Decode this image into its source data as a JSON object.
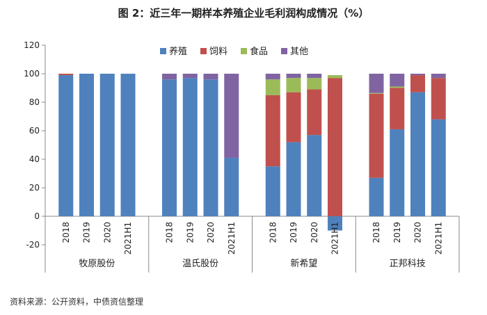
{
  "source": "资料来源：公开资料，中债资信整理",
  "chart_data": {
    "type": "bar",
    "stacked": true,
    "title": "图 2：近三年一期样本养殖企业毛利润构成情况（%）",
    "xlabel": "",
    "ylabel": "",
    "ylim": [
      -20,
      120
    ],
    "yticks": [
      -20,
      0,
      20,
      40,
      60,
      80,
      100,
      120
    ],
    "grid": false,
    "legend_position": "top-center",
    "groups": [
      {
        "name": "牧原股份",
        "categories": [
          "2018",
          "2019",
          "2020",
          "2021H1"
        ]
      },
      {
        "name": "温氏股份",
        "categories": [
          "2018",
          "2019",
          "2020",
          "2021H1"
        ]
      },
      {
        "name": "新希望",
        "categories": [
          "2018",
          "2019",
          "2020",
          "2021H1"
        ]
      },
      {
        "name": "正邦科技",
        "categories": [
          "2018",
          "2019",
          "2020",
          "2021H1"
        ]
      }
    ],
    "series": [
      {
        "name": "养殖",
        "color": "#4f81bd",
        "values": [
          99,
          100,
          100,
          100,
          96,
          97,
          96,
          41,
          35,
          52,
          57,
          -10,
          27,
          61,
          87,
          68
        ]
      },
      {
        "name": "饲料",
        "color": "#c0504d",
        "values": [
          1,
          0,
          0,
          0,
          0,
          0,
          0,
          0,
          50,
          35,
          32,
          97,
          59,
          29,
          12,
          29
        ]
      },
      {
        "name": "食品",
        "color": "#9bbb59",
        "values": [
          0,
          0,
          0,
          0,
          0,
          0,
          0,
          0,
          11,
          10,
          8,
          2,
          0.5,
          1,
          0,
          0
        ]
      },
      {
        "name": "其他",
        "color": "#8064a2",
        "values": [
          0,
          0,
          0,
          0,
          4,
          3,
          4,
          59,
          4,
          3,
          3,
          0,
          13.5,
          9,
          1,
          3
        ]
      }
    ]
  }
}
